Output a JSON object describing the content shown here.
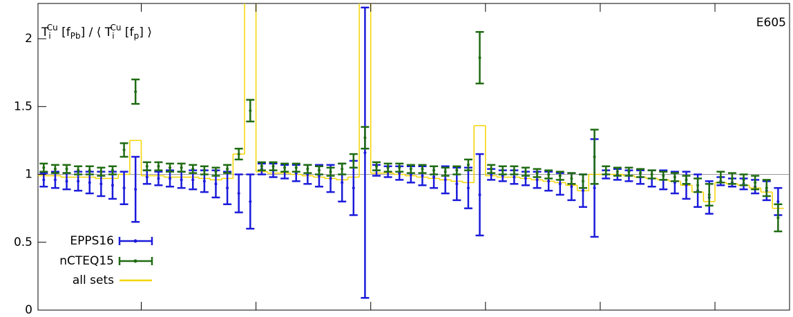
{
  "chart_data": {
    "type": "errorbar",
    "title_parts": [
      "T",
      "i",
      "Cu",
      " [f",
      "Pb",
      "] / ⟨ T",
      "i",
      "Cu",
      " [f",
      "p",
      "]  ⟩"
    ],
    "annotation": "E605",
    "x": [
      3,
      5,
      7,
      9,
      11,
      13,
      15,
      17,
      19,
      21,
      23,
      25,
      27,
      29,
      31,
      33,
      35,
      37,
      39,
      41,
      43,
      45,
      47,
      49,
      51,
      53,
      55,
      57,
      59,
      61,
      63,
      65,
      67,
      69,
      71,
      73,
      75,
      77,
      79,
      81,
      83,
      85,
      87,
      89,
      91,
      93,
      95,
      97,
      99,
      101,
      103,
      105,
      107,
      109,
      111,
      113,
      115,
      117,
      119,
      121,
      123,
      125,
      127,
      129,
      131
    ],
    "xlim": [
      2,
      133
    ],
    "xticks": [
      20,
      40,
      60,
      80,
      100,
      120
    ],
    "ylim": [
      0,
      2.26
    ],
    "yticks": [
      0,
      0.5,
      1,
      1.5,
      2
    ],
    "hline": 1,
    "series": [
      {
        "name": "EPPS16",
        "color": "#1a1adb",
        "values": [
          0.96,
          0.96,
          0.95,
          0.95,
          0.94,
          0.93,
          0.92,
          0.9,
          0.89,
          0.98,
          0.97,
          0.97,
          0.96,
          0.96,
          0.95,
          0.93,
          0.9,
          0.86,
          0.8,
          1.04,
          1.03,
          1.02,
          1.01,
          1.0,
          0.99,
          0.97,
          0.94,
          0.9,
          1.16,
          1.03,
          1.02,
          1.01,
          1.0,
          0.99,
          0.98,
          0.96,
          0.93,
          0.9,
          0.85,
          1.0,
          0.99,
          0.98,
          0.97,
          0.96,
          0.95,
          0.93,
          0.91,
          0.88,
          0.9,
          1.0,
          1.0,
          0.99,
          0.98,
          0.97,
          0.96,
          0.94,
          0.92,
          0.88,
          0.83,
          0.95,
          0.94,
          0.93,
          0.91,
          0.88,
          0.8
        ],
        "errors": [
          0.05,
          0.06,
          0.06,
          0.07,
          0.08,
          0.09,
          0.1,
          0.12,
          0.24,
          0.05,
          0.05,
          0.06,
          0.06,
          0.07,
          0.08,
          0.1,
          0.12,
          0.14,
          0.2,
          0.04,
          0.05,
          0.05,
          0.06,
          0.07,
          0.08,
          0.1,
          0.14,
          0.2,
          1.07,
          0.04,
          0.04,
          0.05,
          0.06,
          0.07,
          0.08,
          0.1,
          0.12,
          0.15,
          0.3,
          0.04,
          0.04,
          0.05,
          0.05,
          0.06,
          0.07,
          0.08,
          0.1,
          0.12,
          0.36,
          0.03,
          0.04,
          0.04,
          0.05,
          0.06,
          0.07,
          0.08,
          0.1,
          0.12,
          0.12,
          0.03,
          0.03,
          0.04,
          0.05,
          0.07,
          0.1
        ]
      },
      {
        "name": "nCTEQ15",
        "color": "#1f6b12",
        "values": [
          1.05,
          1.04,
          1.04,
          1.03,
          1.03,
          1.02,
          1.03,
          1.18,
          1.61,
          1.06,
          1.06,
          1.05,
          1.05,
          1.04,
          1.03,
          1.02,
          1.04,
          1.15,
          1.47,
          1.06,
          1.06,
          1.05,
          1.05,
          1.04,
          1.03,
          1.02,
          1.04,
          1.1,
          1.27,
          1.06,
          1.05,
          1.05,
          1.04,
          1.04,
          1.03,
          1.02,
          1.03,
          1.07,
          1.86,
          1.04,
          1.03,
          1.03,
          1.02,
          1.01,
          1.0,
          0.99,
          0.97,
          0.95,
          1.13,
          1.03,
          1.02,
          1.02,
          1.01,
          1.0,
          0.99,
          0.98,
          0.96,
          0.92,
          0.85,
          0.98,
          0.97,
          0.96,
          0.94,
          0.9,
          0.68
        ],
        "errors": [
          0.03,
          0.03,
          0.03,
          0.03,
          0.03,
          0.03,
          0.03,
          0.05,
          0.09,
          0.03,
          0.03,
          0.03,
          0.03,
          0.03,
          0.03,
          0.03,
          0.03,
          0.04,
          0.08,
          0.03,
          0.03,
          0.03,
          0.03,
          0.03,
          0.03,
          0.03,
          0.04,
          0.05,
          0.08,
          0.03,
          0.03,
          0.03,
          0.03,
          0.03,
          0.03,
          0.03,
          0.03,
          0.04,
          0.19,
          0.03,
          0.03,
          0.03,
          0.03,
          0.03,
          0.03,
          0.03,
          0.04,
          0.05,
          0.2,
          0.03,
          0.03,
          0.03,
          0.03,
          0.03,
          0.03,
          0.03,
          0.03,
          0.05,
          0.08,
          0.04,
          0.04,
          0.04,
          0.05,
          0.06,
          0.1
        ]
      },
      {
        "name": "all sets",
        "color": "#f5d400",
        "steps": true,
        "values": [
          0.99,
          0.99,
          0.98,
          0.98,
          0.98,
          0.97,
          0.97,
          1.0,
          1.25,
          0.99,
          0.99,
          0.98,
          0.98,
          0.98,
          0.97,
          0.96,
          0.97,
          1.15,
          2.3,
          1.02,
          1.01,
          1.01,
          1.0,
          0.99,
          0.98,
          0.97,
          0.96,
          0.98,
          2.3,
          1.01,
          1.01,
          1.0,
          0.99,
          0.98,
          0.97,
          0.96,
          0.95,
          0.94,
          1.36,
          0.99,
          0.98,
          0.98,
          0.97,
          0.96,
          0.95,
          0.94,
          0.92,
          0.88,
          1.0,
          1.0,
          1.0,
          0.99,
          0.98,
          0.97,
          0.96,
          0.95,
          0.92,
          0.87,
          0.8,
          0.94,
          0.93,
          0.92,
          0.9,
          0.87,
          0.75
        ]
      }
    ],
    "legend": "bottom-left"
  }
}
